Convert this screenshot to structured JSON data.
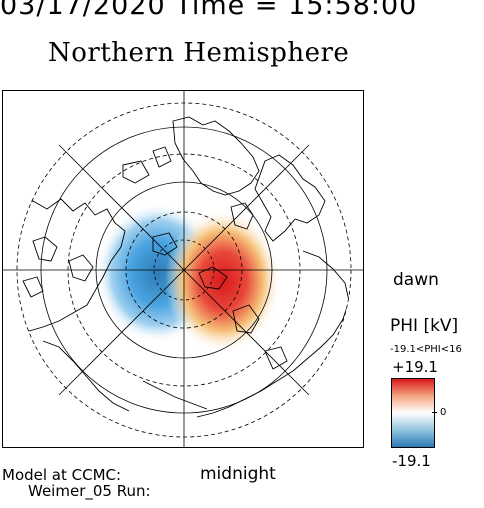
{
  "header": {
    "date_time": "03/17/2020 Time = 15:58:00",
    "title": "Northern Hemisphere"
  },
  "map": {
    "labels": {
      "dawn": "dawn",
      "midnight": "midnight"
    },
    "pattern_colors": {
      "negative": "#2c7bb6",
      "positive": "#d7191c",
      "neutral": "#ffffff"
    }
  },
  "colorbar": {
    "title": "PHI [kV]",
    "range_text": "-19.1<PHI<16",
    "max_label": "+19.1",
    "zero_label": "0",
    "min_label": "-19.1",
    "min_value": -19.1,
    "max_value": 19.1
  },
  "footer": {
    "model_line1": "Model at CCMC:",
    "model_line2": "Weimer_05 Run:"
  }
}
